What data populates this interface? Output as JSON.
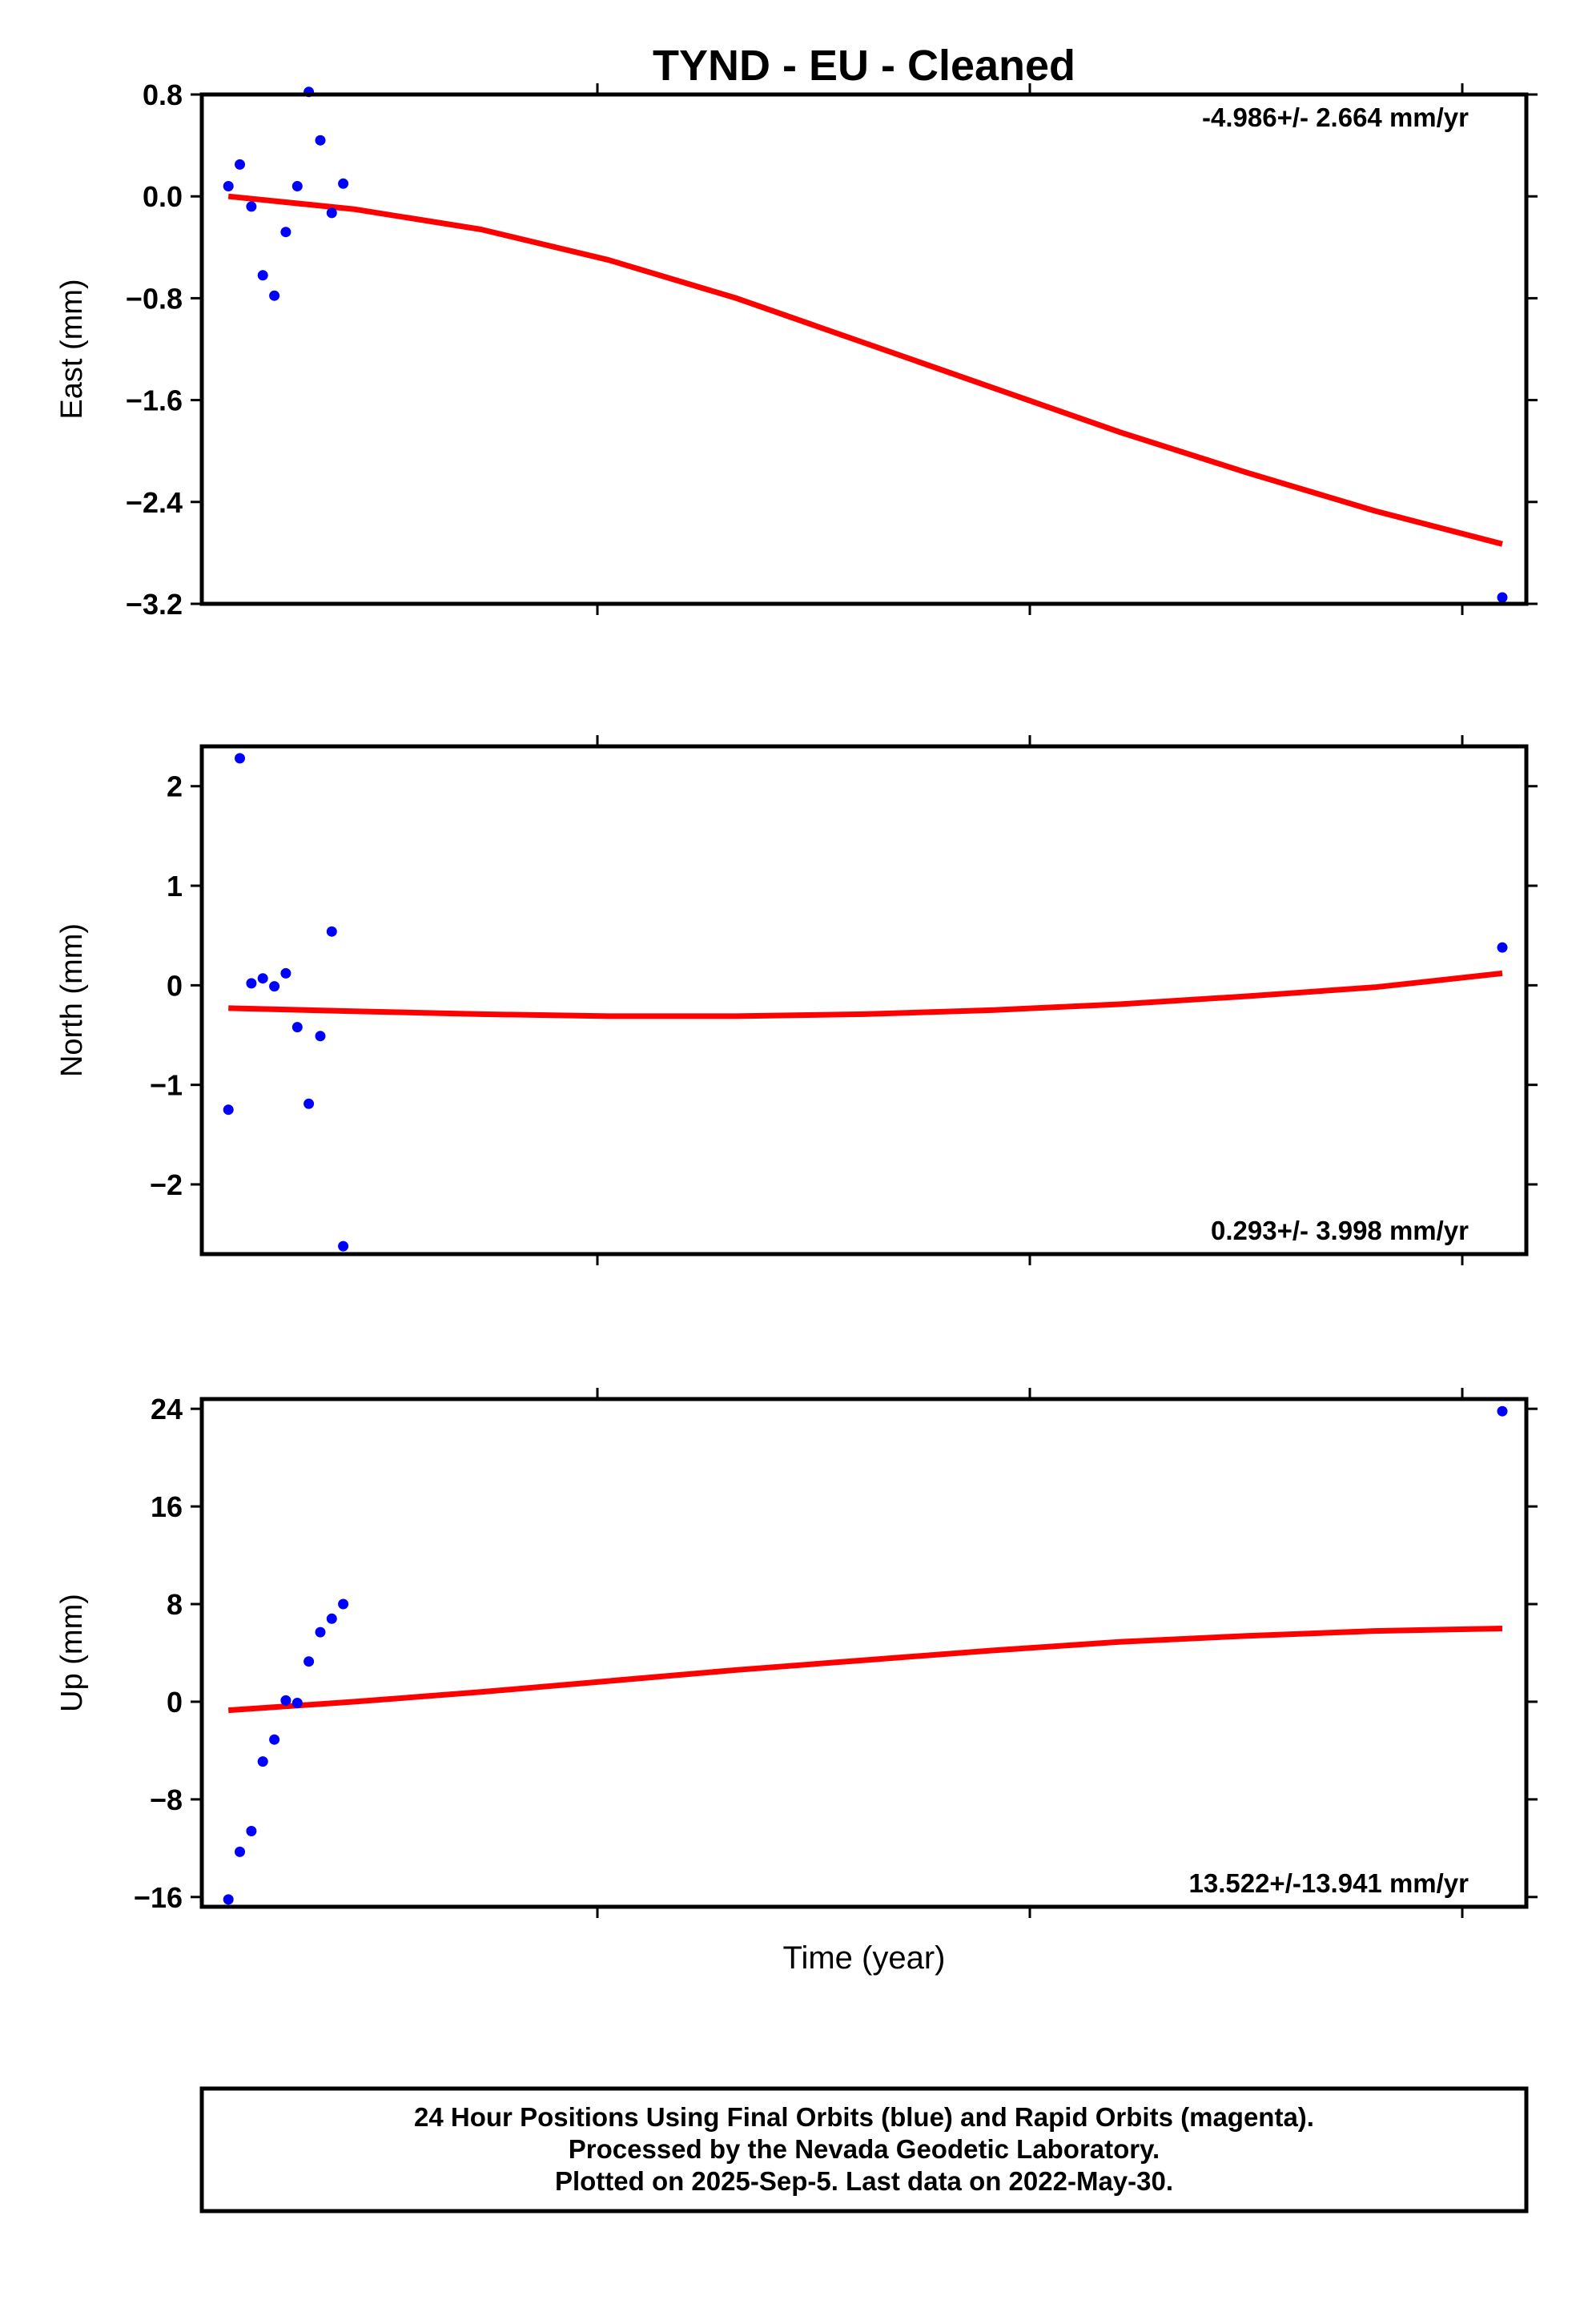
{
  "title": "TYND  - EU - Cleaned",
  "xlabel": "Time (year)",
  "colors": {
    "data": "#0000ff",
    "fit": "#ff0000",
    "frame": "#000000"
  },
  "footer": [
    "24 Hour Positions Using Final Orbits (blue) and Rapid Orbits (magenta).",
    "Processed by the Nevada Geodetic Laboratory.",
    "Plotted on 2025-Sep-5. Last data on 2022-May-30."
  ],
  "chart_data": [
    {
      "type": "scatter",
      "ylabel": "East (mm)",
      "rate_label": "-4.986+/- 2.664 mm/yr",
      "rate_position": "top-right",
      "ylim": [
        -3.2,
        0.8
      ],
      "yticks": [
        0.8,
        0.0,
        -0.8,
        -1.6,
        -2.4,
        -3.2
      ],
      "ytick_labels": [
        "0.8",
        "0.0",
        "−0.8",
        "−1.6",
        "−2.4",
        "−3.2"
      ],
      "xlim": [
        0,
        1000
      ],
      "x": [
        2,
        11,
        20,
        29,
        38,
        47,
        56,
        65,
        74,
        83,
        92,
        1000
      ],
      "y": [
        0.08,
        0.25,
        -0.08,
        -0.62,
        -0.78,
        -0.28,
        0.08,
        0.82,
        0.44,
        -0.13,
        0.1,
        -3.15
      ],
      "fit": {
        "x": [
          2,
          100,
          200,
          300,
          400,
          500,
          600,
          700,
          800,
          900,
          1000
        ],
        "y": [
          0.0,
          -0.1,
          -0.26,
          -0.5,
          -0.8,
          -1.15,
          -1.5,
          -1.85,
          -2.17,
          -2.47,
          -2.73
        ]
      }
    },
    {
      "type": "scatter",
      "ylabel": "North (mm)",
      "rate_label": "0.293+/- 3.998 mm/yr",
      "rate_position": "bottom-right",
      "ylim": [
        -2.7,
        2.4
      ],
      "yticks": [
        2,
        1,
        0,
        -1,
        -2
      ],
      "ytick_labels": [
        "2",
        "1",
        "0",
        "−1",
        "−2"
      ],
      "xlim": [
        0,
        1000
      ],
      "x": [
        2,
        11,
        20,
        29,
        38,
        47,
        56,
        65,
        74,
        83,
        92,
        1000
      ],
      "y": [
        -1.25,
        2.28,
        0.02,
        0.07,
        -0.01,
        0.12,
        -0.42,
        -1.19,
        -0.51,
        0.54,
        -2.62,
        0.38
      ],
      "fit": {
        "x": [
          2,
          100,
          200,
          300,
          400,
          500,
          600,
          700,
          800,
          900,
          1000
        ],
        "y": [
          -0.23,
          -0.26,
          -0.29,
          -0.31,
          -0.31,
          -0.29,
          -0.25,
          -0.19,
          -0.11,
          -0.02,
          0.12
        ]
      }
    },
    {
      "type": "scatter",
      "ylabel": "Up (mm)",
      "rate_label": "13.522+/-13.941 mm/yr",
      "rate_position": "bottom-right",
      "ylim": [
        -16.8,
        24.8
      ],
      "yticks": [
        24,
        16,
        8,
        0,
        -8,
        -16
      ],
      "ytick_labels": [
        "24",
        "16",
        "8",
        "0",
        "−8",
        "−16"
      ],
      "xlim": [
        0,
        1000
      ],
      "x": [
        2,
        11,
        20,
        29,
        38,
        47,
        56,
        65,
        74,
        83,
        92,
        1000
      ],
      "y": [
        -16.2,
        -12.3,
        -10.6,
        -4.9,
        -3.1,
        0.1,
        -0.1,
        3.3,
        5.7,
        6.8,
        8.0,
        23.8
      ],
      "fit": {
        "x": [
          2,
          100,
          200,
          300,
          400,
          500,
          600,
          700,
          800,
          900,
          1000
        ],
        "y": [
          -0.7,
          0.0,
          0.8,
          1.7,
          2.6,
          3.4,
          4.2,
          4.9,
          5.4,
          5.8,
          6.0
        ]
      }
    }
  ]
}
